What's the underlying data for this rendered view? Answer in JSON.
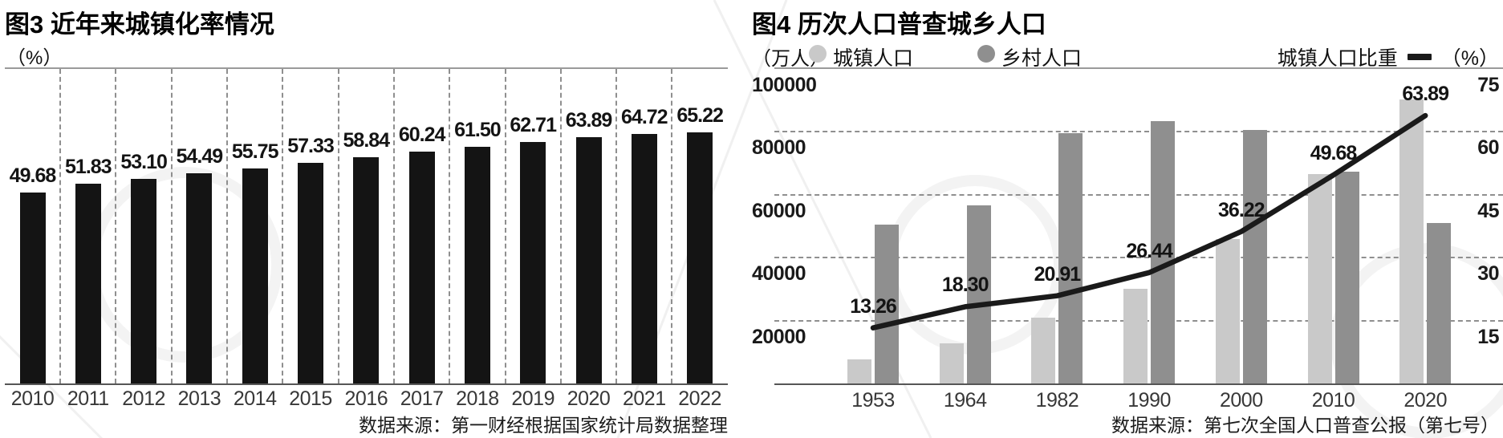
{
  "colors": {
    "bar_black": "#141414",
    "urban_bar": "#c9c9c9",
    "rural_bar": "#8f8f8f",
    "share_line": "#1a1a1a",
    "grid": "#8f8f8f"
  },
  "chart_data": [
    {
      "id": "fig3",
      "type": "bar",
      "title": "图3 近年来城镇化率情况",
      "unit": "（%）",
      "categories": [
        "2010",
        "2011",
        "2012",
        "2013",
        "2014",
        "2015",
        "2016",
        "2017",
        "2018",
        "2019",
        "2020",
        "2021",
        "2022"
      ],
      "values": [
        "49.68",
        "51.83",
        "53.10",
        "54.49",
        "55.75",
        "57.33",
        "58.84",
        "60.24",
        "61.50",
        "62.71",
        "63.89",
        "64.72",
        "65.22"
      ],
      "value_labels": true,
      "ylim": [
        0,
        81
      ],
      "grid": "vertical-dashed",
      "bar_color": "#141414",
      "source": "数据来源：第一财经根据国家统计局数据整理"
    },
    {
      "id": "fig4",
      "type": "bar+line",
      "title": "图4  历次人口普查城乡人口",
      "categories": [
        "1953",
        "1964",
        "1982",
        "1990",
        "2000",
        "2010",
        "2020"
      ],
      "left_axis": {
        "unit": "（万人）",
        "ticks": [
          100000,
          80000,
          60000,
          40000,
          20000
        ],
        "max": 100000,
        "min": 0
      },
      "right_axis": {
        "unit": "（%）",
        "ticks": [
          75,
          60,
          45,
          30,
          15
        ],
        "max": 75,
        "min": 0
      },
      "legend_position": "top",
      "grid": "horizontal-dashed",
      "series": [
        {
          "name": "城镇人口",
          "type": "bar",
          "axis": "left",
          "color": "#c9c9c9",
          "estimated_from_gridlines": true,
          "values": [
            7700,
            12700,
            21000,
            30000,
            45800,
            66600,
            90200
          ]
        },
        {
          "name": "乡村人口",
          "type": "bar",
          "axis": "left",
          "color": "#8f8f8f",
          "estimated_from_gridlines": true,
          "values": [
            50500,
            56700,
            79700,
            83400,
            80700,
            67400,
            51000
          ]
        },
        {
          "name": "城镇人口比重",
          "type": "line",
          "axis": "right",
          "color": "#1a1a1a",
          "labeled": true,
          "values": [
            "13.26",
            "18.30",
            "20.91",
            "26.44",
            "36.22",
            "49.68",
            "63.89"
          ]
        }
      ],
      "source": "数据来源：第七次全国人口普查公报（第七号）"
    }
  ]
}
